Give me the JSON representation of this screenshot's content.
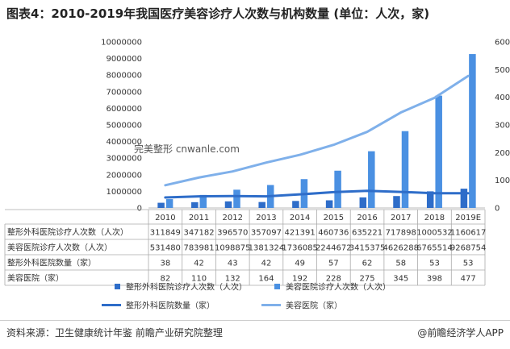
{
  "title": "图表4：2010-2019年我国医疗美容诊疗人次数与机构数量 (单位：人次，家)",
  "watermark_text": "完美整形 cnwanle.com",
  "footer": {
    "source": "资料来源：卫生健康统计年鉴 前瞻产业研究院整理",
    "brand": "@前瞻经济学人APP"
  },
  "colors": {
    "bar_dark": "#2e6dc9",
    "bar_light": "#4a90e2",
    "line_dark": "#2e6dc9",
    "line_light": "#7fb0ea"
  },
  "chart_data": {
    "type": "bar",
    "categories": [
      "2010",
      "2011",
      "2012",
      "2013",
      "2014",
      "2015",
      "2016",
      "2017",
      "2018",
      "2019E"
    ],
    "y_left": {
      "ticks": [
        "0",
        "1000000",
        "2000000",
        "3000000",
        "4000000",
        "5000000",
        "6000000",
        "7000000",
        "8000000",
        "9000000",
        "10000000"
      ],
      "range": [
        0,
        10000000
      ]
    },
    "y_right": {
      "ticks": [
        "0",
        "100",
        "200",
        "300",
        "400",
        "500",
        "600"
      ],
      "range": [
        0,
        600
      ]
    },
    "series": [
      {
        "name": "整形外科医院诊疗人次数（人次）",
        "kind": "bar",
        "axis": "left",
        "values": [
          311849,
          347182,
          396570,
          357097,
          421391,
          460736,
          635221,
          717898,
          1000532,
          1160617
        ],
        "labels": [
          "311849",
          "347182",
          "396570",
          "357097",
          "421391",
          "460736",
          "635221",
          "717898",
          "1000532",
          "1160617"
        ]
      },
      {
        "name": "美容医院诊疗人次数（人次）",
        "kind": "bar",
        "axis": "left",
        "values": [
          531480,
          783981,
          1098875,
          1381324,
          1736085,
          2244672,
          3415375,
          4626288,
          6765514,
          9268754
        ],
        "labels": [
          "531480",
          "783981",
          "1098875",
          "1381324",
          "1736085",
          "2244672",
          "3415375",
          "4626288",
          "6765514",
          "9268754"
        ]
      },
      {
        "name": "整形外科医院数量（家）",
        "kind": "line",
        "axis": "right",
        "values": [
          38,
          42,
          43,
          42,
          49,
          57,
          62,
          58,
          53,
          53
        ],
        "labels": [
          "38",
          "42",
          "43",
          "42",
          "49",
          "57",
          "62",
          "58",
          "53",
          "53"
        ]
      },
      {
        "name": "美容医院（家）",
        "kind": "line",
        "axis": "right",
        "values": [
          82,
          110,
          132,
          164,
          192,
          228,
          275,
          345,
          398,
          477
        ],
        "labels": [
          "82",
          "110",
          "132",
          "164",
          "192",
          "228",
          "275",
          "345",
          "398",
          "477"
        ]
      }
    ],
    "legend_position": "bottom"
  }
}
